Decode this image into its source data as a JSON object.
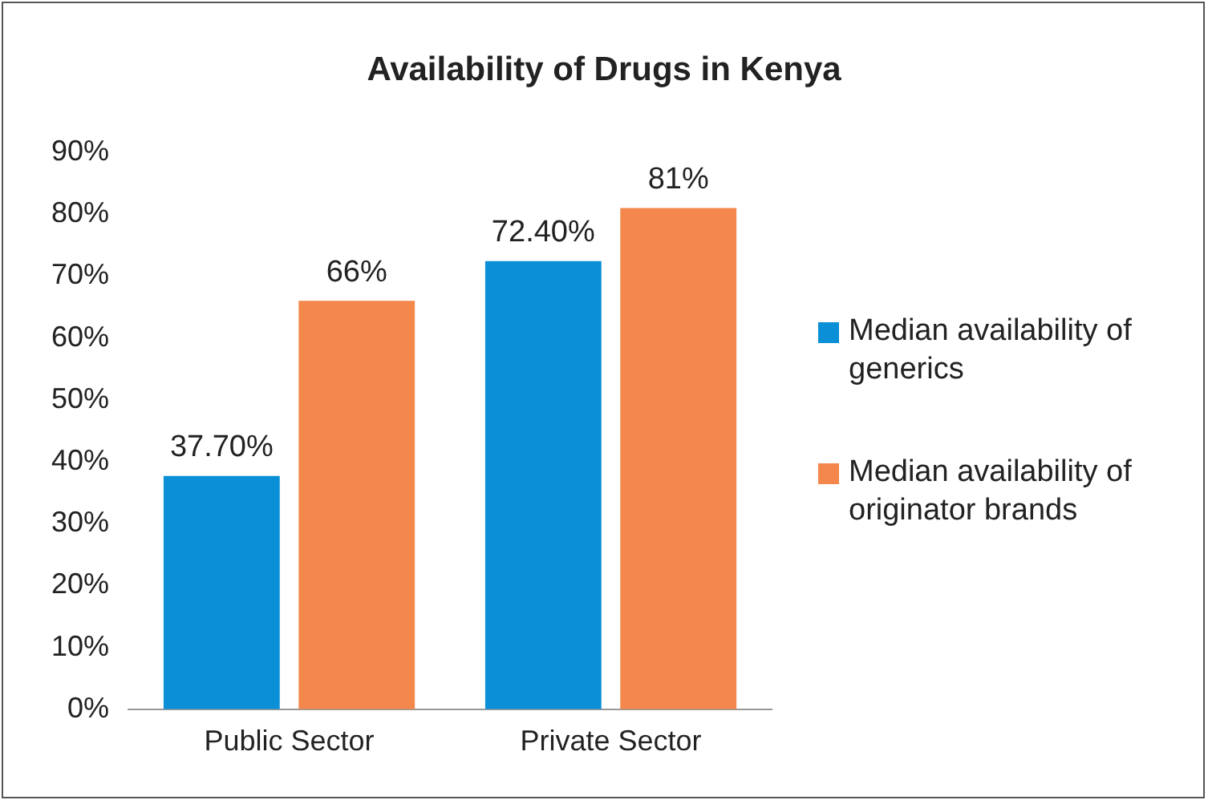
{
  "chart_data": {
    "type": "bar",
    "title": "Availability of Drugs in Kenya",
    "categories": [
      "Public Sector",
      "Private Sector"
    ],
    "series": [
      {
        "name": "Median availability of generics",
        "color": "#0b8fd6",
        "values": [
          37.7,
          72.4
        ],
        "value_labels": [
          "37.70%",
          "72.40%"
        ]
      },
      {
        "name": "Median availability of originator brands",
        "color": "#f4874b",
        "values": [
          66,
          81
        ],
        "value_labels": [
          "66%",
          "81%"
        ]
      }
    ],
    "ylim": [
      0,
      90
    ],
    "yticks": [
      {
        "value": 0,
        "label": "0%"
      },
      {
        "value": 10,
        "label": "10%"
      },
      {
        "value": 20,
        "label": "20%"
      },
      {
        "value": 30,
        "label": "30%"
      },
      {
        "value": 40,
        "label": "40%"
      },
      {
        "value": 50,
        "label": "50%"
      },
      {
        "value": 60,
        "label": "60%"
      },
      {
        "value": 70,
        "label": "70%"
      },
      {
        "value": 80,
        "label": "80%"
      },
      {
        "value": 90,
        "label": "90%"
      }
    ],
    "grid": false,
    "legend": "right"
  }
}
